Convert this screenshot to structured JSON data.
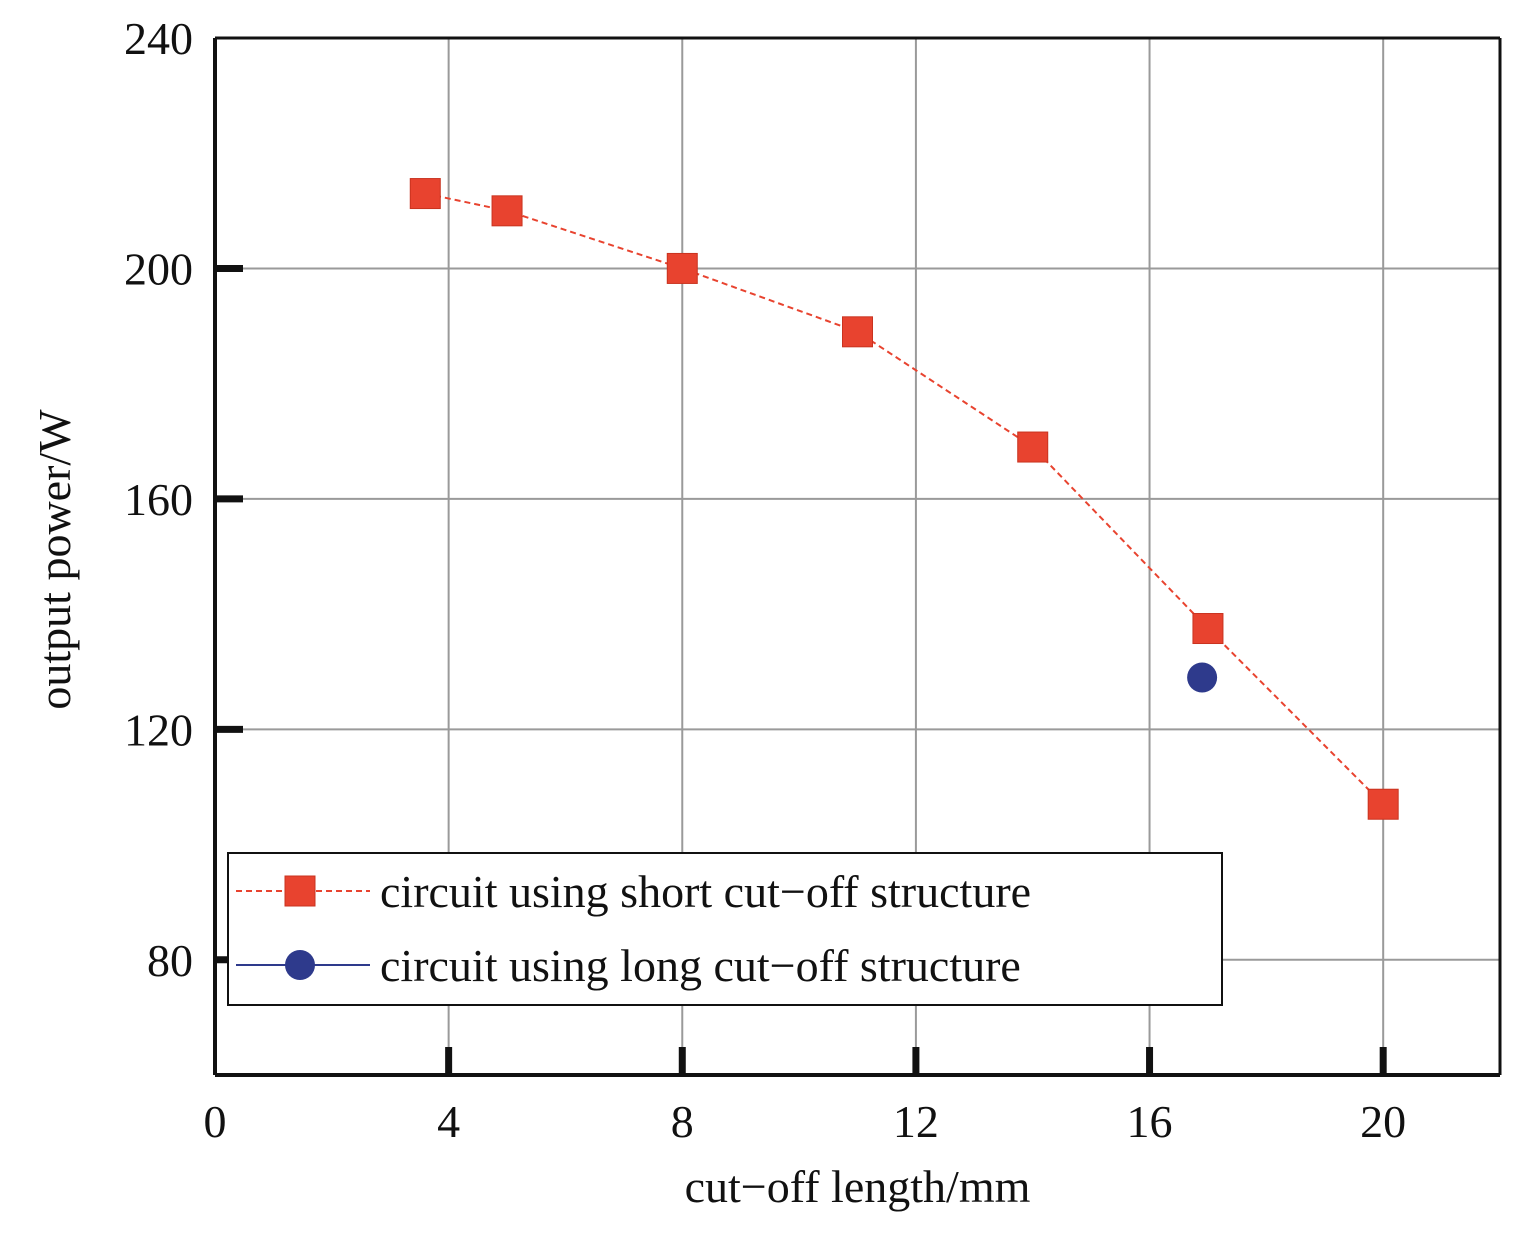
{
  "chart_data": {
    "type": "line",
    "xlabel": "cut−off length/mm",
    "ylabel": "output power/W",
    "xlim": [
      0,
      22
    ],
    "ylim": [
      60,
      240
    ],
    "x_ticks": [
      0,
      4,
      8,
      12,
      16,
      20
    ],
    "y_ticks": [
      80,
      120,
      160,
      200,
      240
    ],
    "grid": true,
    "legend_position": "bottom-left",
    "series": [
      {
        "name": "circuit using short cut−off structure",
        "marker": "square",
        "line": "dashed",
        "color": "#e8432f",
        "x": [
          3.6,
          5.0,
          8.0,
          11.0,
          14.0,
          17.0,
          20.0
        ],
        "y": [
          213,
          210,
          200,
          189,
          169,
          137.5,
          107
        ]
      },
      {
        "name": "circuit using long cut−off structure",
        "marker": "circle",
        "line": "solid",
        "color": "#2e3a8c",
        "x": [
          16.9
        ],
        "y": [
          129
        ]
      }
    ]
  }
}
